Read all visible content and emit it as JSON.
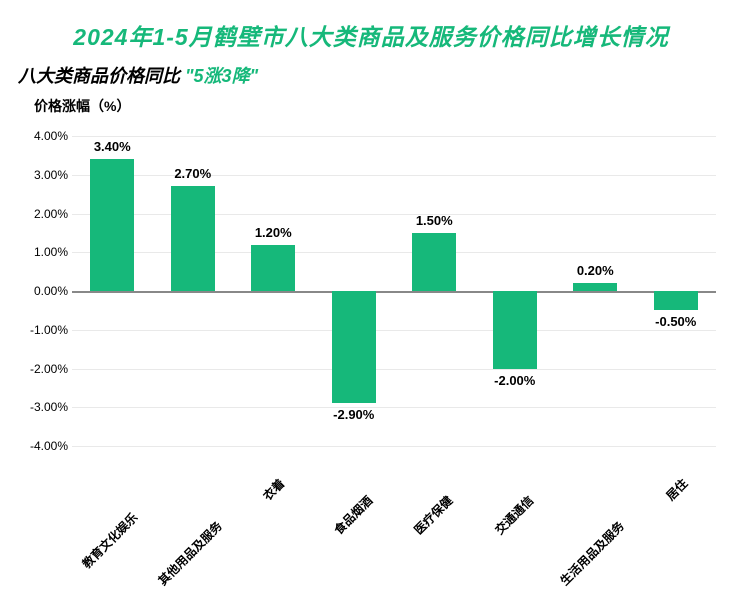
{
  "title": {
    "text": "2024年1-5月鹤壁市八大类商品及服务价格同比增长情况",
    "color": "#16b87a",
    "fontsize": 23
  },
  "subtitle": {
    "part1": "八大类商品价格同比",
    "part2": "\"5涨3降\"",
    "part1_color": "#000000",
    "part2_color": "#16b87a",
    "fontsize": 18
  },
  "ylabel": {
    "text": "价格涨幅（%）",
    "color": "#000000",
    "fontsize": 14
  },
  "chart": {
    "type": "bar",
    "categories": [
      "教育文化娱乐",
      "其他用品及服务",
      "衣着",
      "食品烟酒",
      "医疗保健",
      "交通通信",
      "生活用品及服务",
      "居住"
    ],
    "values": [
      3.4,
      2.7,
      1.2,
      -2.9,
      1.5,
      -2.0,
      0.2,
      -0.5
    ],
    "value_labels": [
      "3.40%",
      "2.70%",
      "1.20%",
      "-2.90%",
      "1.50%",
      "-2.00%",
      "0.20%",
      "-0.50%"
    ],
    "bar_color": "#16b87a",
    "ylim": [
      -4.0,
      4.0
    ],
    "yticks": [
      -4.0,
      -3.0,
      -2.0,
      -1.0,
      0.0,
      1.0,
      2.0,
      3.0,
      4.0
    ],
    "ytick_labels": [
      "-4.00%",
      "-3.00%",
      "-2.00%",
      "-1.00%",
      "0.00%",
      "1.00%",
      "2.00%",
      "3.00%",
      "4.00%"
    ],
    "grid_color": "#e9e9e9",
    "zero_line_color": "#888888",
    "background_color": "#ffffff",
    "tick_fontsize": 12,
    "label_fontsize": 13,
    "xtick_rotation_deg": 45,
    "bar_width_ratio": 0.55
  }
}
